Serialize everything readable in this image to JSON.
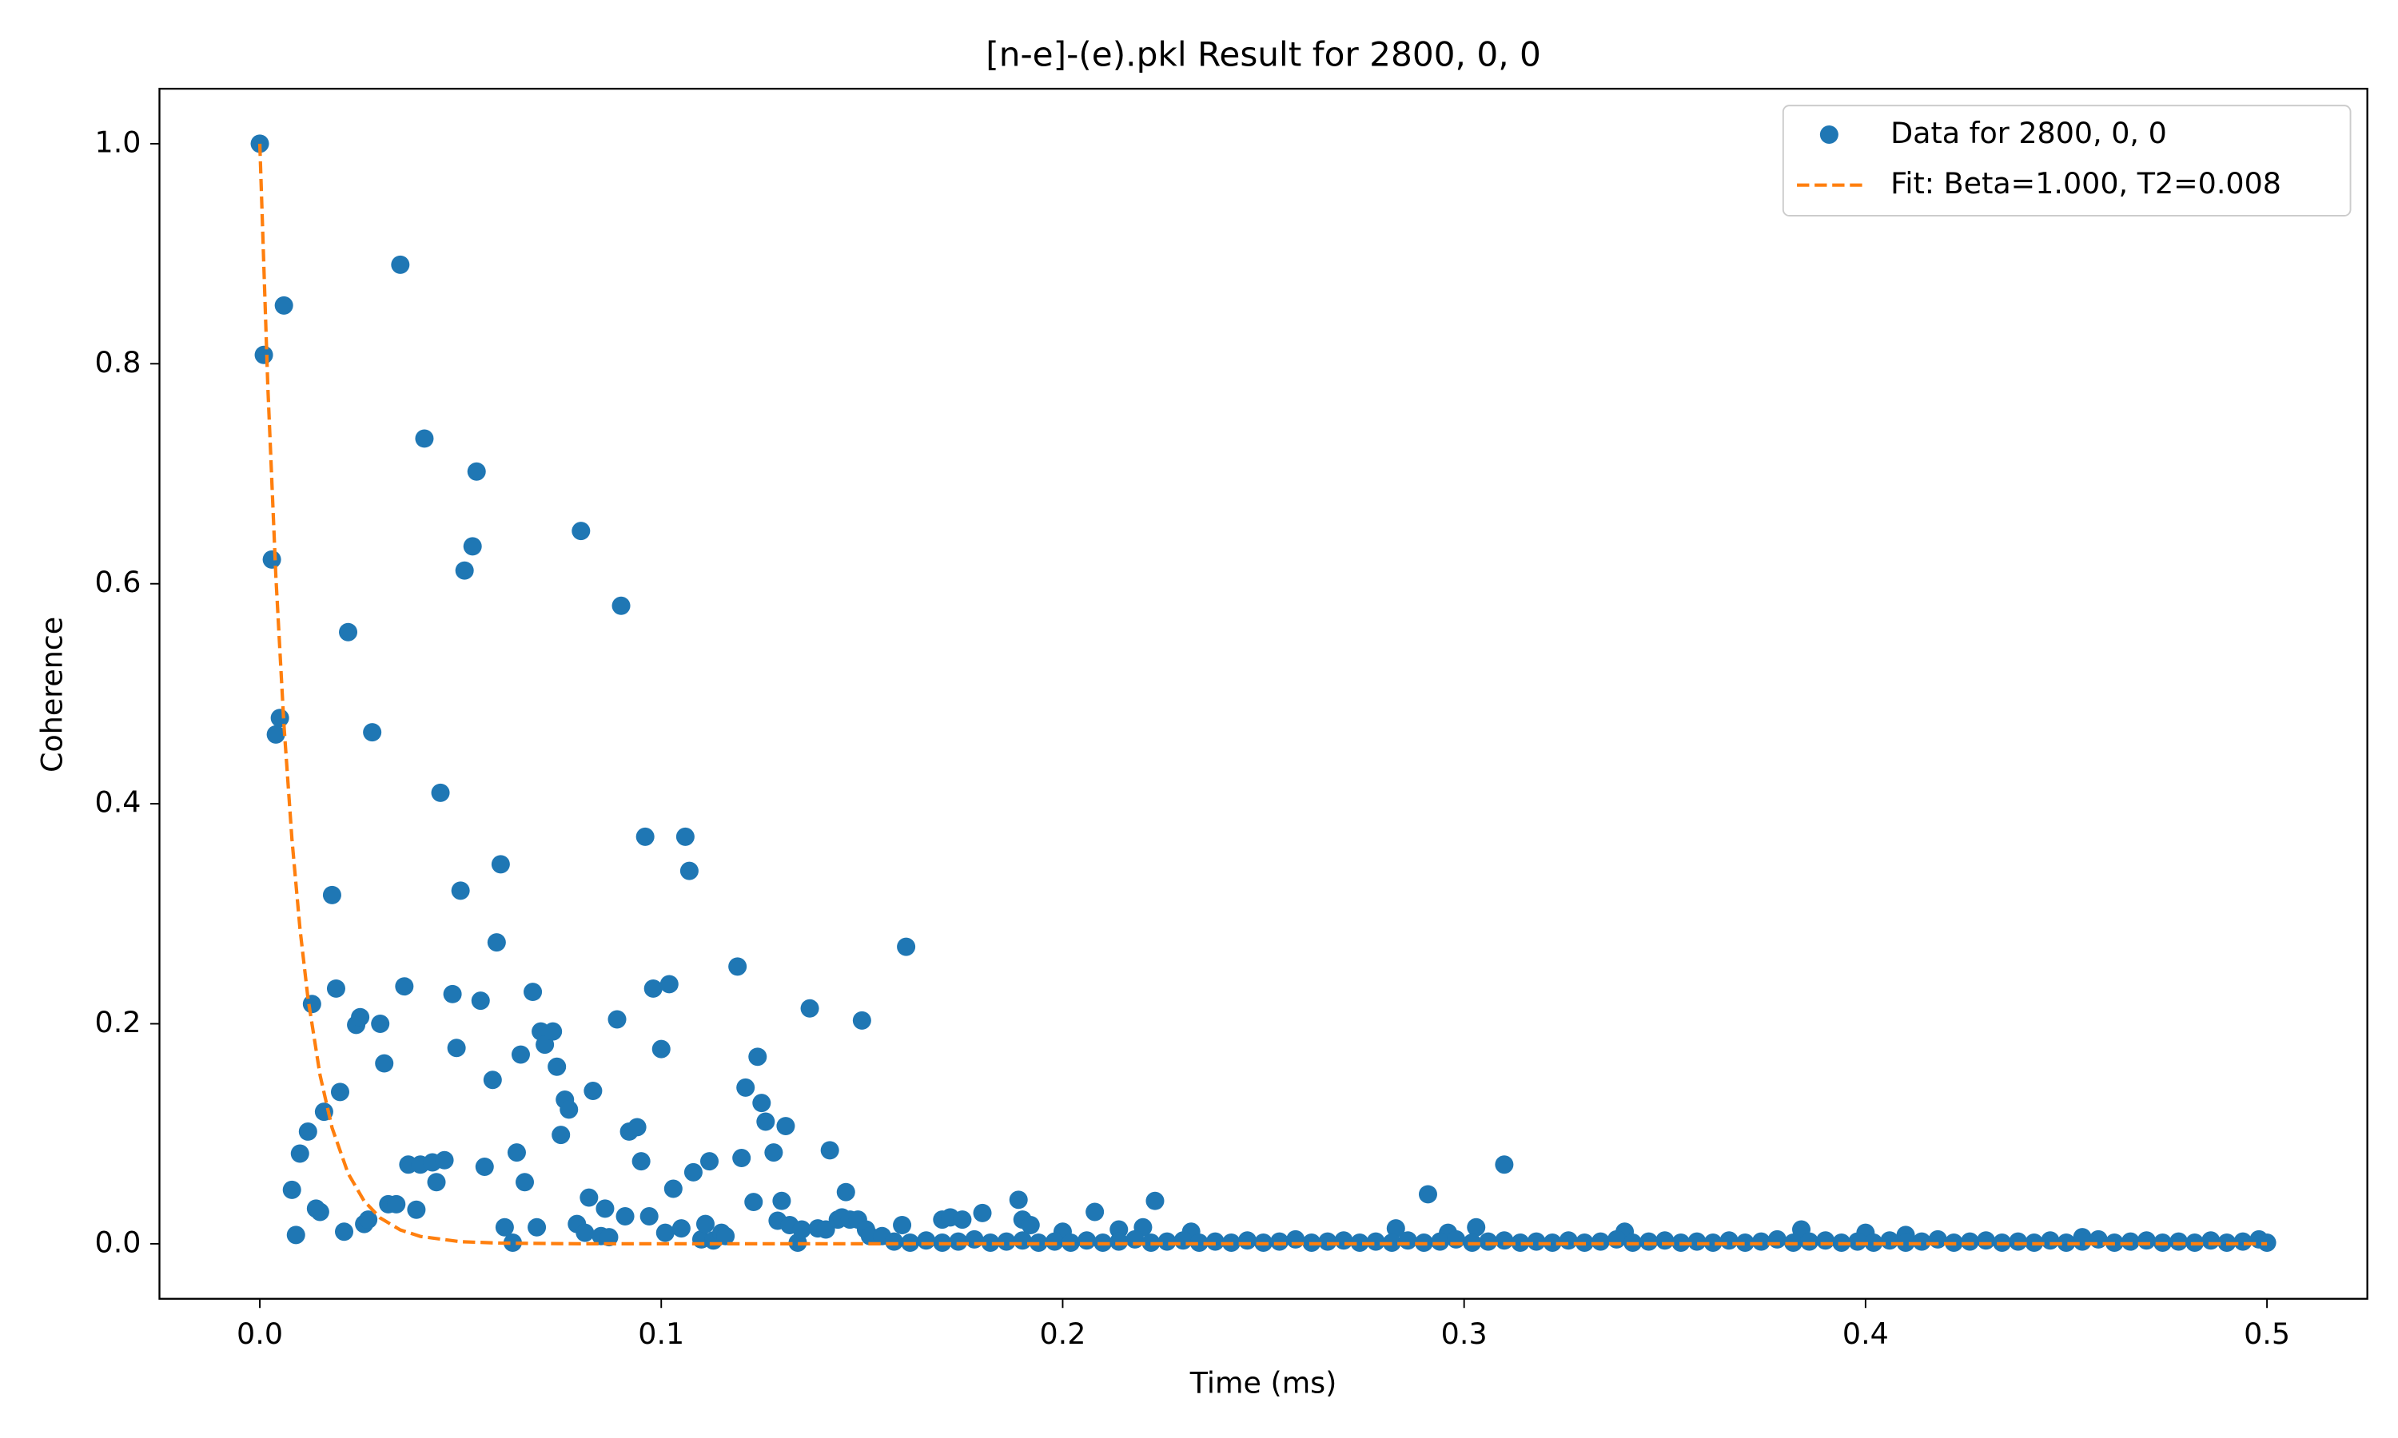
{
  "chart_data": {
    "type": "scatter",
    "title": "[n-e]-(e).pkl Result for 2800, 0, 0",
    "x_label": "Time (ms)",
    "y_label": "Coherence",
    "xlim": [
      -0.025,
      0.525
    ],
    "ylim": [
      -0.05,
      1.05
    ],
    "xticks": [
      {
        "value": 0,
        "label": "0.0"
      },
      0.1,
      0.2,
      0.3,
      0.4,
      0.5
    ],
    "yticks": [
      {
        "value": 0,
        "label": "0.0"
      },
      0.2,
      0.4,
      0.6,
      0.8,
      {
        "value": 1,
        "label": "1.0"
      }
    ],
    "legend": "upper right",
    "series": [
      {
        "name": "Data for 2800, 0, 0",
        "color": "#1f77b4",
        "style": "marker",
        "x": [
          0,
          0.001,
          0.006,
          0.003,
          0.005,
          0.004,
          0.008,
          0.009,
          0.01,
          0.012,
          0.013,
          0.014,
          0.015,
          0.016,
          0.018,
          0.019,
          0.02,
          0.021,
          0.022,
          0.024,
          0.025,
          0.026,
          0.027,
          0.028,
          0.03,
          0.031,
          0.032,
          0.034,
          0.035,
          0.036,
          0.037,
          0.039,
          0.04,
          0.041,
          0.043,
          0.044,
          0.045,
          0.046,
          0.048,
          0.049,
          0.05,
          0.051,
          0.053,
          0.054,
          0.055,
          0.056,
          0.058,
          0.059,
          0.06,
          0.061,
          0.063,
          0.064,
          0.065,
          0.066,
          0.068,
          0.069,
          0.07,
          0.071,
          0.073,
          0.074,
          0.075,
          0.076,
          0.077,
          0.079,
          0.08,
          0.081,
          0.082,
          0.083,
          0.085,
          0.086,
          0.087,
          0.089,
          0.09,
          0.091,
          0.092,
          0.094,
          0.095,
          0.096,
          0.097,
          0.098,
          0.1,
          0.101,
          0.102,
          0.103,
          0.105,
          0.106,
          0.107,
          0.108,
          0.11,
          0.111,
          0.112,
          0.113,
          0.115,
          0.116,
          0.119,
          0.12,
          0.121,
          0.123,
          0.124,
          0.125,
          0.126,
          0.128,
          0.129,
          0.13,
          0.131,
          0.132,
          0.134,
          0.135,
          0.137,
          0.139,
          0.141,
          0.142,
          0.144,
          0.145,
          0.146,
          0.147,
          0.149,
          0.15,
          0.151,
          0.152,
          0.155,
          0.16,
          0.161,
          0.17,
          0.172,
          0.175,
          0.18,
          0.189,
          0.19,
          0.192,
          0.2,
          0.208,
          0.214,
          0.22,
          0.223,
          0.232,
          0.283,
          0.291,
          0.296,
          0.303,
          0.31,
          0.34,
          0.384,
          0.4,
          0.41,
          0.454,
          0.158,
          0.162,
          0.166,
          0.17,
          0.174,
          0.178,
          0.182,
          0.186,
          0.19,
          0.194,
          0.198,
          0.202,
          0.206,
          0.21,
          0.214,
          0.218,
          0.222,
          0.226,
          0.23,
          0.234,
          0.238,
          0.242,
          0.246,
          0.25,
          0.254,
          0.258,
          0.262,
          0.266,
          0.27,
          0.274,
          0.278,
          0.282,
          0.286,
          0.29,
          0.294,
          0.298,
          0.302,
          0.306,
          0.31,
          0.314,
          0.318,
          0.322,
          0.326,
          0.33,
          0.334,
          0.338,
          0.342,
          0.346,
          0.35,
          0.354,
          0.358,
          0.362,
          0.366,
          0.37,
          0.374,
          0.378,
          0.382,
          0.386,
          0.39,
          0.394,
          0.398,
          0.402,
          0.406,
          0.41,
          0.414,
          0.418,
          0.422,
          0.426,
          0.43,
          0.434,
          0.438,
          0.442,
          0.446,
          0.45,
          0.454,
          0.458,
          0.462,
          0.466,
          0.47,
          0.474,
          0.478,
          0.482,
          0.486,
          0.49,
          0.494,
          0.498,
          0.5
        ],
        "values": [
          1.0,
          0.808,
          0.853,
          0.622,
          0.478,
          0.463,
          0.049,
          0.008,
          0.082,
          0.102,
          0.218,
          0.032,
          0.029,
          0.12,
          0.317,
          0.232,
          0.138,
          0.011,
          0.556,
          0.199,
          0.206,
          0.018,
          0.022,
          0.465,
          0.2,
          0.164,
          0.036,
          0.036,
          0.89,
          0.234,
          0.072,
          0.031,
          0.072,
          0.732,
          0.074,
          0.056,
          0.41,
          0.076,
          0.227,
          0.178,
          0.321,
          0.612,
          0.634,
          0.702,
          0.221,
          0.07,
          0.149,
          0.274,
          0.345,
          0.015,
          0.001,
          0.083,
          0.172,
          0.056,
          0.229,
          0.015,
          0.193,
          0.181,
          0.193,
          0.161,
          0.099,
          0.131,
          0.122,
          0.018,
          0.648,
          0.01,
          0.042,
          0.139,
          0.007,
          0.032,
          0.006,
          0.204,
          0.58,
          0.025,
          0.102,
          0.106,
          0.075,
          0.37,
          0.025,
          0.232,
          0.177,
          0.01,
          0.236,
          0.05,
          0.014,
          0.37,
          0.339,
          0.065,
          0.004,
          0.018,
          0.075,
          0.003,
          0.01,
          0.007,
          0.252,
          0.078,
          0.142,
          0.038,
          0.17,
          0.128,
          0.111,
          0.083,
          0.021,
          0.039,
          0.107,
          0.017,
          0.001,
          0.013,
          0.214,
          0.014,
          0.013,
          0.085,
          0.022,
          0.024,
          0.047,
          0.022,
          0.022,
          0.203,
          0.013,
          0.007,
          0.007,
          0.017,
          0.27,
          0.022,
          0.024,
          0.022,
          0.028,
          0.04,
          0.022,
          0.017,
          0.011,
          0.029,
          0.013,
          0.015,
          0.039,
          0.011,
          0.014,
          0.045,
          0.01,
          0.015,
          0.072,
          0.011,
          0.013,
          0.01,
          0.008,
          0.006,
          0.002,
          0.001,
          0.003,
          0.001,
          0.002,
          0.004,
          0.001,
          0.002,
          0.003,
          0.001,
          0.002,
          0.001,
          0.003,
          0.001,
          0.002,
          0.004,
          0.001,
          0.002,
          0.003,
          0.001,
          0.002,
          0.001,
          0.003,
          0.001,
          0.002,
          0.004,
          0.001,
          0.002,
          0.003,
          0.001,
          0.002,
          0.001,
          0.003,
          0.001,
          0.002,
          0.004,
          0.001,
          0.002,
          0.003,
          0.001,
          0.002,
          0.001,
          0.003,
          0.001,
          0.002,
          0.004,
          0.001,
          0.002,
          0.003,
          0.001,
          0.002,
          0.001,
          0.003,
          0.001,
          0.002,
          0.004,
          0.001,
          0.002,
          0.003,
          0.001,
          0.002,
          0.001,
          0.003,
          0.001,
          0.002,
          0.004,
          0.001,
          0.002,
          0.003,
          0.001,
          0.002,
          0.001,
          0.003,
          0.001,
          0.002,
          0.004,
          0.001,
          0.002,
          0.003,
          0.001,
          0.002,
          0.001,
          0.003,
          0.001,
          0.002,
          0.004,
          0.001
        ]
      },
      {
        "name": "Fit: Beta=1.000, T2=0.008",
        "color": "#ff7f0e",
        "style": "dashed",
        "x": [
          0,
          0.002,
          0.004,
          0.006,
          0.008,
          0.01,
          0.012,
          0.015,
          0.018,
          0.022,
          0.026,
          0.03,
          0.035,
          0.04,
          0.05,
          0.06,
          0.08,
          0.1,
          0.2,
          0.3,
          0.4,
          0.5
        ],
        "values": [
          1,
          0.7788,
          0.6065,
          0.4724,
          0.3679,
          0.2865,
          0.2231,
          0.1534,
          0.1054,
          0.0639,
          0.0388,
          0.0235,
          0.0126,
          0.0067,
          0.0019,
          0.0006,
          0,
          0,
          0,
          0,
          0,
          0
        ]
      }
    ]
  }
}
